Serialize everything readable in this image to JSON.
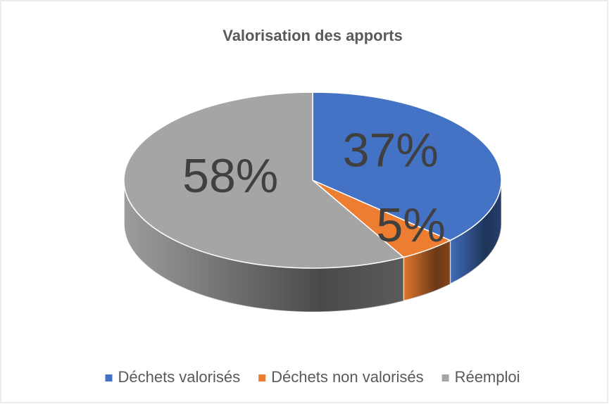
{
  "chart_data": {
    "type": "pie",
    "title": "Valorisation des apports",
    "categories": [
      "Déchets valorisés",
      "Déchets non valorisés",
      "Réemploi"
    ],
    "values": [
      37,
      5,
      58
    ],
    "value_labels": [
      "37%",
      "5%",
      "58%"
    ],
    "colors": [
      "#4472c4",
      "#ed7d31",
      "#a5a5a5"
    ],
    "legend": "bottom"
  }
}
